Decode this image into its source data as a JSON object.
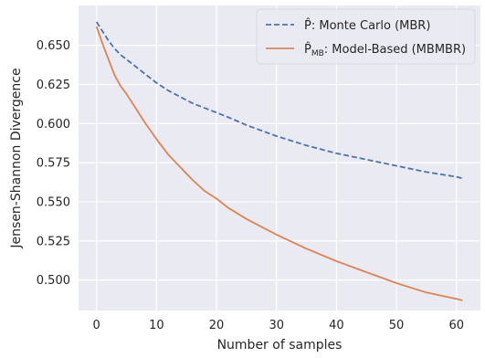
{
  "chart_data": {
    "type": "line",
    "title": "",
    "xlabel": "Number of samples",
    "ylabel": "Jensen-Shannon Divergence",
    "xlim": [
      -3,
      64
    ],
    "ylim": [
      0.4805,
      0.6755
    ],
    "xticks": [
      0,
      10,
      20,
      30,
      40,
      50,
      60
    ],
    "yticks": [
      0.5,
      0.525,
      0.55,
      0.575,
      0.6,
      0.625,
      0.65
    ],
    "ytick_labels": [
      "0.500",
      "0.525",
      "0.550",
      "0.575",
      "0.600",
      "0.625",
      "0.650"
    ],
    "grid": true,
    "background": "#eaeaf2",
    "legend_position": "top-right",
    "series": [
      {
        "name": "P̂: Monte Carlo (MBR)",
        "legend_base": "P̂: Monte Carlo (MBR)",
        "legend_sub": "",
        "legend_rest": "",
        "color": "#4c72b0",
        "linestyle": "dashed",
        "x": [
          0,
          1,
          2,
          3,
          4,
          5,
          6,
          8,
          10,
          12,
          14,
          16,
          18,
          20,
          22,
          25,
          30,
          35,
          40,
          45,
          50,
          55,
          60,
          61
        ],
        "y": [
          0.665,
          0.659,
          0.653,
          0.648,
          0.644,
          0.641,
          0.638,
          0.632,
          0.626,
          0.621,
          0.617,
          0.613,
          0.61,
          0.607,
          0.604,
          0.599,
          0.592,
          0.586,
          0.581,
          0.577,
          0.573,
          0.569,
          0.566,
          0.565
        ]
      },
      {
        "name": "P̂MB: Model-Based (MBMBR)",
        "legend_base": "P̂",
        "legend_sub": "MB",
        "legend_rest": ": Model-Based (MBMBR)",
        "color": "#dd8452",
        "linestyle": "solid",
        "x": [
          0,
          1,
          2,
          3,
          4,
          5,
          6,
          8,
          10,
          12,
          14,
          16,
          18,
          20,
          22,
          25,
          30,
          35,
          40,
          45,
          50,
          55,
          60,
          61
        ],
        "y": [
          0.662,
          0.651,
          0.641,
          0.631,
          0.624,
          0.619,
          0.613,
          0.601,
          0.59,
          0.58,
          0.572,
          0.564,
          0.557,
          0.552,
          0.546,
          0.539,
          0.529,
          0.52,
          0.512,
          0.505,
          0.498,
          0.492,
          0.488,
          0.487
        ]
      }
    ]
  }
}
